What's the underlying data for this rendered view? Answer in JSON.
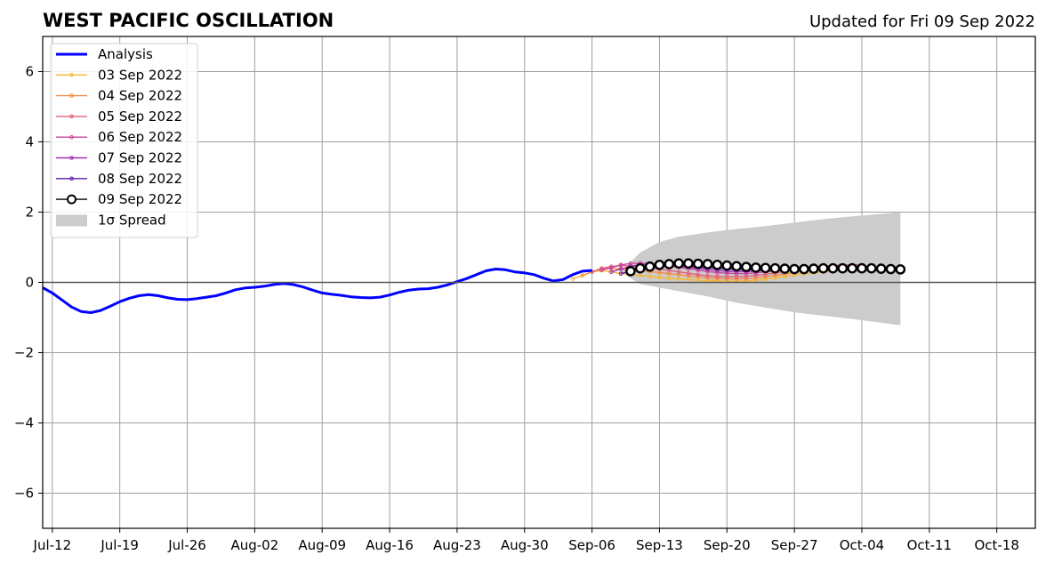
{
  "chart_data": {
    "type": "line",
    "title": "WEST PACIFIC OSCILLATION",
    "subtitle": "Updated for Fri 09 Sep 2022",
    "xlabel": "",
    "ylabel": "",
    "x_range": [
      "2022-07-11",
      "2022-10-22"
    ],
    "ylim": [
      -7,
      7
    ],
    "x_ticks": [
      "Jul-12",
      "Jul-19",
      "Jul-26",
      "Aug-02",
      "Aug-09",
      "Aug-16",
      "Aug-23",
      "Aug-30",
      "Sep-06",
      "Sep-13",
      "Sep-20",
      "Sep-27",
      "Oct-04",
      "Oct-11",
      "Oct-18"
    ],
    "y_ticks": [
      -6,
      -4,
      -2,
      0,
      2,
      4,
      6
    ],
    "grid": true,
    "legend_position": "upper-left",
    "analysis": {
      "name": "Analysis",
      "color": "#0000ff",
      "points": [
        [
          "2022-07-11",
          -0.15
        ],
        [
          "2022-07-12",
          -0.3
        ],
        [
          "2022-07-13",
          -0.5
        ],
        [
          "2022-07-14",
          -0.7
        ],
        [
          "2022-07-15",
          -0.83
        ],
        [
          "2022-07-16",
          -0.86
        ],
        [
          "2022-07-17",
          -0.8
        ],
        [
          "2022-07-18",
          -0.68
        ],
        [
          "2022-07-19",
          -0.55
        ],
        [
          "2022-07-20",
          -0.45
        ],
        [
          "2022-07-21",
          -0.38
        ],
        [
          "2022-07-22",
          -0.35
        ],
        [
          "2022-07-23",
          -0.38
        ],
        [
          "2022-07-24",
          -0.44
        ],
        [
          "2022-07-25",
          -0.48
        ],
        [
          "2022-07-26",
          -0.49
        ],
        [
          "2022-07-27",
          -0.46
        ],
        [
          "2022-07-28",
          -0.42
        ],
        [
          "2022-07-29",
          -0.38
        ],
        [
          "2022-07-30",
          -0.3
        ],
        [
          "2022-07-31",
          -0.21
        ],
        [
          "2022-08-01",
          -0.16
        ],
        [
          "2022-08-02",
          -0.14
        ],
        [
          "2022-08-03",
          -0.11
        ],
        [
          "2022-08-04",
          -0.06
        ],
        [
          "2022-08-05",
          -0.03
        ],
        [
          "2022-08-06",
          -0.06
        ],
        [
          "2022-08-07",
          -0.13
        ],
        [
          "2022-08-08",
          -0.22
        ],
        [
          "2022-08-09",
          -0.3
        ],
        [
          "2022-08-10",
          -0.34
        ],
        [
          "2022-08-11",
          -0.37
        ],
        [
          "2022-08-12",
          -0.41
        ],
        [
          "2022-08-13",
          -0.43
        ],
        [
          "2022-08-14",
          -0.44
        ],
        [
          "2022-08-15",
          -0.42
        ],
        [
          "2022-08-16",
          -0.36
        ],
        [
          "2022-08-17",
          -0.28
        ],
        [
          "2022-08-18",
          -0.22
        ],
        [
          "2022-08-19",
          -0.19
        ],
        [
          "2022-08-20",
          -0.18
        ],
        [
          "2022-08-21",
          -0.14
        ],
        [
          "2022-08-22",
          -0.07
        ],
        [
          "2022-08-23",
          0.02
        ],
        [
          "2022-08-24",
          0.11
        ],
        [
          "2022-08-25",
          0.22
        ],
        [
          "2022-08-26",
          0.33
        ],
        [
          "2022-08-27",
          0.38
        ],
        [
          "2022-08-28",
          0.36
        ],
        [
          "2022-08-29",
          0.3
        ],
        [
          "2022-08-30",
          0.27
        ],
        [
          "2022-08-31",
          0.22
        ],
        [
          "2022-09-01",
          0.12
        ],
        [
          "2022-09-02",
          0.04
        ],
        [
          "2022-09-03",
          0.08
        ],
        [
          "2022-09-04",
          0.22
        ],
        [
          "2022-09-05",
          0.32
        ],
        [
          "2022-09-06",
          0.34
        ]
      ]
    },
    "spread": {
      "name": "1σ Spread",
      "color": "#cccccc",
      "points": [
        [
          "2022-09-09",
          0.3,
          0.3
        ],
        [
          "2022-09-11",
          0.85,
          -0.05
        ],
        [
          "2022-09-13",
          1.15,
          -0.15
        ],
        [
          "2022-09-15",
          1.3,
          -0.25
        ],
        [
          "2022-09-18",
          1.42,
          -0.4
        ],
        [
          "2022-09-21",
          1.52,
          -0.58
        ],
        [
          "2022-09-24",
          1.6,
          -0.72
        ],
        [
          "2022-09-27",
          1.7,
          -0.85
        ],
        [
          "2022-09-30",
          1.8,
          -0.95
        ],
        [
          "2022-10-03",
          1.88,
          -1.04
        ],
        [
          "2022-10-06",
          1.95,
          -1.15
        ],
        [
          "2022-10-08",
          2.0,
          -1.22
        ]
      ]
    },
    "series": [
      {
        "name": "03 Sep 2022",
        "color": "#f7b733",
        "start": "2022-09-04",
        "values": [
          0.1,
          0.2,
          0.3,
          0.34,
          0.3,
          0.25,
          0.22,
          0.2,
          0.17,
          0.14,
          0.12,
          0.1,
          0.08,
          0.06,
          0.05,
          0.04,
          0.03,
          0.03,
          0.04,
          0.06,
          0.09,
          0.13,
          0.17,
          0.21,
          0.25,
          0.28,
          0.3,
          0.32
        ]
      },
      {
        "name": "04 Sep 2022",
        "color": "#f48a43",
        "start": "2022-09-05",
        "values": [
          0.2,
          0.3,
          0.38,
          0.4,
          0.38,
          0.36,
          0.34,
          0.31,
          0.28,
          0.25,
          0.22,
          0.19,
          0.16,
          0.13,
          0.11,
          0.1,
          0.1,
          0.11,
          0.13,
          0.16,
          0.2,
          0.24,
          0.28,
          0.32,
          0.35,
          0.37,
          0.38,
          0.4
        ]
      },
      {
        "name": "05 Sep 2022",
        "color": "#e0607e",
        "start": "2022-09-06",
        "values": [
          0.3,
          0.4,
          0.45,
          0.48,
          0.47,
          0.44,
          0.41,
          0.38,
          0.34,
          0.3,
          0.26,
          0.22,
          0.19,
          0.17,
          0.16,
          0.16,
          0.17,
          0.2,
          0.23,
          0.27,
          0.31,
          0.35,
          0.38,
          0.41,
          0.43,
          0.44,
          0.45,
          0.46
        ]
      },
      {
        "name": "06 Sep 2022",
        "color": "#c8479b",
        "start": "2022-09-07",
        "values": [
          0.35,
          0.42,
          0.5,
          0.54,
          0.55,
          0.53,
          0.5,
          0.47,
          0.43,
          0.39,
          0.35,
          0.31,
          0.28,
          0.26,
          0.25,
          0.25,
          0.27,
          0.3,
          0.33,
          0.36,
          0.39,
          0.42,
          0.44,
          0.46,
          0.48,
          0.49,
          0.5,
          0.5
        ]
      },
      {
        "name": "07 Sep 2022",
        "color": "#a02db5",
        "start": "2022-09-08",
        "values": [
          0.3,
          0.38,
          0.46,
          0.5,
          0.52,
          0.52,
          0.5,
          0.47,
          0.43,
          0.4,
          0.37,
          0.34,
          0.32,
          0.31,
          0.31,
          0.32,
          0.34,
          0.36,
          0.38,
          0.4,
          0.42,
          0.43,
          0.44,
          0.45,
          0.45,
          0.46,
          0.46,
          0.46
        ]
      },
      {
        "name": "08 Sep 2022",
        "color": "#5c1ea8",
        "start": "2022-09-09",
        "values": [
          0.25,
          0.32,
          0.4,
          0.45,
          0.47,
          0.48,
          0.47,
          0.46,
          0.44,
          0.42,
          0.4,
          0.38,
          0.37,
          0.36,
          0.36,
          0.37,
          0.38,
          0.39,
          0.4,
          0.41,
          0.42,
          0.43,
          0.43,
          0.44,
          0.44,
          0.44,
          0.44,
          0.44
        ]
      },
      {
        "name": "09 Sep 2022",
        "color": "#000000",
        "start": "2022-09-10",
        "values": [
          0.32,
          0.4,
          0.45,
          0.5,
          0.52,
          0.54,
          0.54,
          0.53,
          0.52,
          0.5,
          0.48,
          0.46,
          0.44,
          0.42,
          0.41,
          0.4,
          0.39,
          0.38,
          0.38,
          0.39,
          0.4,
          0.4,
          0.4,
          0.4,
          0.4,
          0.4,
          0.39,
          0.38,
          0.37
        ]
      }
    ]
  }
}
